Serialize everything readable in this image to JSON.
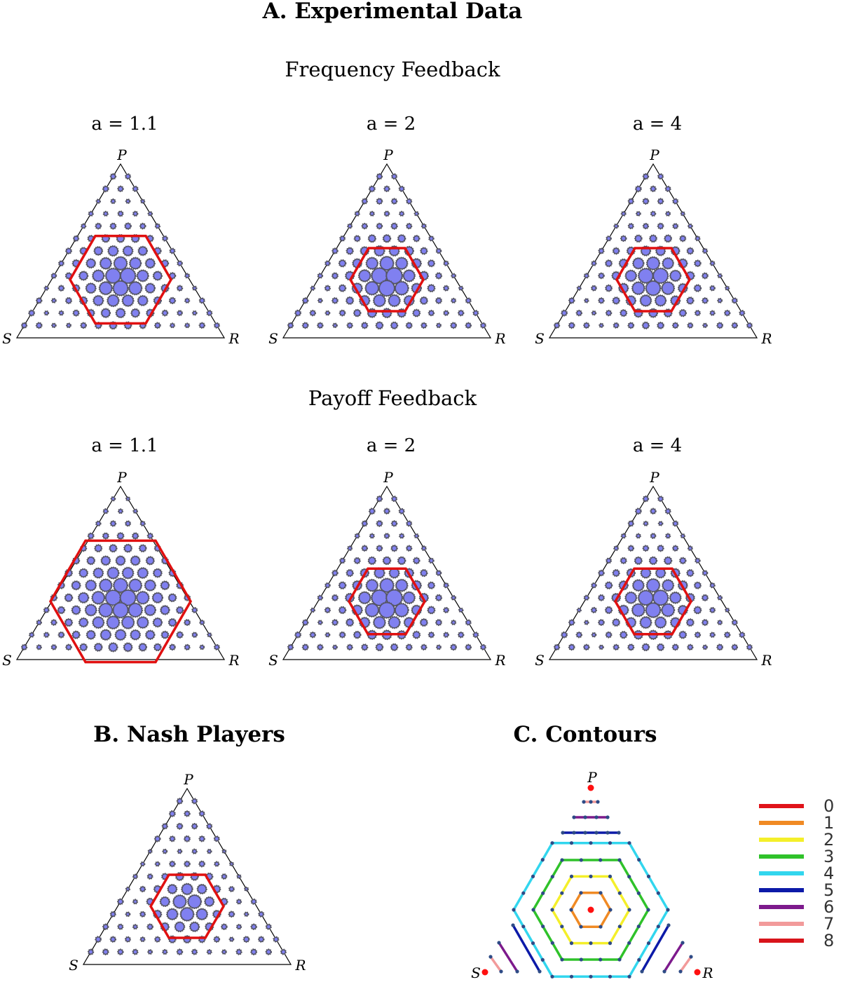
{
  "section_a": {
    "title": "A. Experimental Data",
    "rows": [
      {
        "title": "Frequency Feedback",
        "panels": [
          {
            "label": "a = 1.1"
          },
          {
            "label": "a = 2"
          },
          {
            "label": "a = 4"
          }
        ]
      },
      {
        "title": "Payoff Feedback",
        "panels": [
          {
            "label": "a = 1.1"
          },
          {
            "label": "a = 2"
          },
          {
            "label": "a = 4"
          }
        ]
      }
    ]
  },
  "section_b": {
    "title": "B. Nash Players"
  },
  "section_c": {
    "title": "C. Contours"
  },
  "vertex_labels": {
    "top": "P",
    "left": "S",
    "right": "R"
  },
  "legend": {
    "items": [
      {
        "label": "0",
        "color": "#e0131a"
      },
      {
        "label": "1",
        "color": "#f08a24"
      },
      {
        "label": "2",
        "color": "#f4ef2a"
      },
      {
        "label": "3",
        "color": "#2fc22a"
      },
      {
        "label": "4",
        "color": "#32d6ee"
      },
      {
        "label": "5",
        "color": "#0c1aa8"
      },
      {
        "label": "6",
        "color": "#7d1a8c"
      },
      {
        "label": "7",
        "color": "#f29a9a"
      },
      {
        "label": "8",
        "color": "#d8141b"
      }
    ]
  },
  "colors": {
    "bubble_fill": "#8080f0",
    "bubble_edge": "#555566",
    "nash_hexagon": "#e01010",
    "point": "#2e4b86",
    "center_point": "#ff1010"
  }
}
